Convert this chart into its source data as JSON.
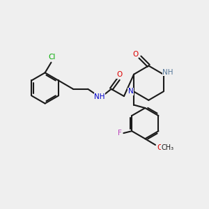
{
  "background_color": "#efefef",
  "bond_color": "#1a1a1a",
  "atom_colors": {
    "Cl": "#00aa00",
    "O": "#dd0000",
    "N": "#0000cc",
    "NH_ring": "#557799",
    "F": "#bb44bb"
  },
  "figsize": [
    3.0,
    3.0
  ],
  "dpi": 100
}
